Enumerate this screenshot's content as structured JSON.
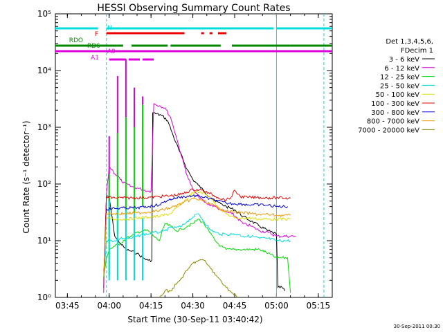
{
  "chart_data": {
    "type": "line",
    "title": "HESSI Observing Summary Count Rates",
    "xlabel": "Start Time (30-Sep-11 03:40:42)",
    "ylabel": "Count Rate (s⁻¹ detector⁻¹)",
    "yscale": "log",
    "ylim": [
      1,
      100000
    ],
    "xlim": [
      "03:40:42",
      "05:20:00"
    ],
    "x_unit": "time (HH:MM)",
    "x_ticks": [
      "03:45",
      "04:00",
      "04:15",
      "04:30",
      "04:45",
      "05:00",
      "05:15"
    ],
    "y_ticks": [
      "10⁰",
      "10¹",
      "10²",
      "10³",
      "10⁴",
      "10⁵"
    ],
    "grid": false,
    "legend_placement": "right",
    "legend_header": [
      "Det 1,3,4,5,6,",
      "FDecim 1"
    ],
    "footer_stamp": "30-Sep-2011 00:30",
    "data_window": [
      "03:58",
      "05:07"
    ],
    "series": [
      {
        "name": "3 - 6 keV",
        "color": "#000000",
        "points": [
          [
            "03:58",
            1.5
          ],
          [
            "03:59",
            60
          ],
          [
            "04:00",
            58
          ],
          [
            "04:02",
            12
          ],
          [
            "04:04",
            9
          ],
          [
            "04:06",
            7
          ],
          [
            "04:08",
            6.5
          ],
          [
            "04:10",
            6
          ],
          [
            "04:12",
            5
          ],
          [
            "04:14",
            4.5
          ],
          [
            "04:15.3",
            4.5
          ],
          [
            "04:15.6",
            1800
          ],
          [
            "04:19",
            1600
          ],
          [
            "04:21",
            1300
          ],
          [
            "04:23",
            700
          ],
          [
            "04:25",
            400
          ],
          [
            "04:28",
            180
          ],
          [
            "04:30",
            120
          ],
          [
            "04:32",
            95
          ],
          [
            "04:34",
            75
          ],
          [
            "04:36",
            60
          ],
          [
            "04:38",
            50
          ],
          [
            "04:40",
            45
          ],
          [
            "04:42",
            40
          ],
          [
            "04:45",
            35
          ],
          [
            "04:48",
            27
          ],
          [
            "04:51",
            22
          ],
          [
            "04:54",
            18
          ],
          [
            "04:57",
            15
          ],
          [
            "05:00",
            13
          ],
          [
            "05:00.5",
            1.5
          ],
          [
            "05:02",
            1.5
          ],
          [
            "05:03",
            1.3
          ]
        ]
      },
      {
        "name": "6 - 12 keV",
        "color": "#dd00dd",
        "points": [
          [
            "03:58",
            1.2
          ],
          [
            "03:59",
            65
          ],
          [
            "04:00",
            200
          ],
          [
            "04:01",
            180
          ],
          [
            "04:02",
            150
          ],
          [
            "04:03",
            140
          ],
          [
            "04:04",
            120
          ],
          [
            "04:05",
            105
          ],
          [
            "04:06",
            100
          ],
          [
            "04:08",
            90
          ],
          [
            "04:10",
            85
          ],
          [
            "04:12",
            80
          ],
          [
            "04:14",
            75
          ],
          [
            "04:15",
            75
          ],
          [
            "04:16",
            2600
          ],
          [
            "04:18",
            2400
          ],
          [
            "04:20",
            2200
          ],
          [
            "04:22",
            1500
          ],
          [
            "04:24",
            700
          ],
          [
            "04:26",
            300
          ],
          [
            "04:28",
            140
          ],
          [
            "04:30",
            80
          ],
          [
            "04:32",
            60
          ],
          [
            "04:35",
            45
          ],
          [
            "04:38",
            40
          ],
          [
            "04:40",
            35
          ],
          [
            "04:42",
            32
          ],
          [
            "04:44",
            30
          ],
          [
            "04:46",
            25
          ],
          [
            "04:48",
            20
          ],
          [
            "04:51",
            18
          ],
          [
            "04:54",
            15
          ],
          [
            "04:57",
            14
          ],
          [
            "05:00",
            12
          ],
          [
            "05:05",
            12
          ],
          [
            "05:07",
            12
          ]
        ],
        "spikes": [
          [
            "04:00",
            700
          ],
          [
            "04:03",
            8000
          ],
          [
            "04:06",
            16000
          ],
          [
            "04:09",
            5000
          ],
          [
            "04:12",
            3500
          ]
        ]
      },
      {
        "name": "12 - 25 keV",
        "color": "#00dd00",
        "points": [
          [
            "03:58",
            2
          ],
          [
            "03:59",
            5
          ],
          [
            "04:00",
            7
          ],
          [
            "04:02",
            8
          ],
          [
            "04:04",
            9
          ],
          [
            "04:06",
            11
          ],
          [
            "04:08",
            12
          ],
          [
            "04:10",
            14
          ],
          [
            "04:12",
            15
          ],
          [
            "04:14",
            15
          ],
          [
            "04:16",
            12
          ],
          [
            "04:18",
            10
          ],
          [
            "04:20",
            20
          ],
          [
            "04:22",
            18
          ],
          [
            "04:24",
            15
          ],
          [
            "04:26",
            16
          ],
          [
            "04:28",
            18
          ],
          [
            "04:30",
            20
          ],
          [
            "04:32",
            24
          ],
          [
            "04:34",
            20
          ],
          [
            "04:36",
            14
          ],
          [
            "04:38",
            10
          ],
          [
            "04:40",
            8
          ],
          [
            "04:42",
            7
          ],
          [
            "04:44",
            7
          ],
          [
            "04:46",
            7
          ],
          [
            "04:48",
            7
          ],
          [
            "04:51",
            7
          ],
          [
            "04:54",
            7
          ],
          [
            "04:57",
            6
          ],
          [
            "05:00",
            5
          ],
          [
            "05:02",
            5
          ],
          [
            "05:04",
            5
          ],
          [
            "05:05",
            1.2
          ]
        ],
        "spikes": [
          [
            "04:00",
            150
          ],
          [
            "04:03",
            800
          ],
          [
            "04:06",
            1500
          ],
          [
            "04:09",
            1000
          ],
          [
            "04:12",
            2500
          ]
        ]
      },
      {
        "name": "25 - 50 keV",
        "color": "#00dddd",
        "points": [
          [
            "03:58",
            2
          ],
          [
            "03:59",
            10
          ],
          [
            "04:00",
            10
          ],
          [
            "04:02",
            10
          ],
          [
            "04:04",
            11
          ],
          [
            "04:06",
            11
          ],
          [
            "04:08",
            11
          ],
          [
            "04:10",
            12
          ],
          [
            "04:12",
            13
          ],
          [
            "04:14",
            13
          ],
          [
            "04:16",
            14
          ],
          [
            "04:18",
            14
          ],
          [
            "04:20",
            15
          ],
          [
            "04:22",
            17
          ],
          [
            "04:24",
            17
          ],
          [
            "04:26",
            18
          ],
          [
            "04:28",
            22
          ],
          [
            "04:30",
            26
          ],
          [
            "04:32",
            30
          ],
          [
            "04:34",
            22
          ],
          [
            "04:36",
            16
          ],
          [
            "04:38",
            14
          ],
          [
            "04:40",
            13
          ],
          [
            "04:42",
            13
          ],
          [
            "04:44",
            13
          ],
          [
            "04:46",
            13
          ],
          [
            "04:48",
            12
          ],
          [
            "04:51",
            12
          ],
          [
            "04:54",
            11
          ],
          [
            "04:57",
            11
          ],
          [
            "05:00",
            10
          ],
          [
            "05:03",
            10
          ],
          [
            "05:05",
            10
          ]
        ],
        "spikes": [
          [
            "04:00",
            50
          ],
          [
            "04:03",
            40
          ],
          [
            "04:06",
            35
          ],
          [
            "04:09",
            30
          ],
          [
            "04:12",
            25
          ]
        ]
      },
      {
        "name": "50 - 100 keV",
        "color": "#dddd00",
        "points": [
          [
            "03:58",
            2
          ],
          [
            "03:59",
            25
          ],
          [
            "04:02",
            24
          ],
          [
            "04:06",
            24
          ],
          [
            "04:10",
            25
          ],
          [
            "04:14",
            26
          ],
          [
            "04:18",
            27
          ],
          [
            "04:22",
            30
          ],
          [
            "04:26",
            45
          ],
          [
            "04:30",
            70
          ],
          [
            "04:33",
            72
          ],
          [
            "04:36",
            60
          ],
          [
            "04:39",
            40
          ],
          [
            "04:42",
            30
          ],
          [
            "04:45",
            25
          ],
          [
            "04:48",
            25
          ],
          [
            "04:51",
            25
          ],
          [
            "04:54",
            24
          ],
          [
            "04:57",
            24
          ],
          [
            "05:00",
            24
          ],
          [
            "05:05",
            24
          ]
        ]
      },
      {
        "name": "100 - 300 keV",
        "color": "#ee0000",
        "points": [
          [
            "03:58",
            2
          ],
          [
            "03:59",
            58
          ],
          [
            "04:02",
            57
          ],
          [
            "04:06",
            57
          ],
          [
            "04:10",
            57
          ],
          [
            "04:14",
            58
          ],
          [
            "04:18",
            60
          ],
          [
            "04:22",
            62
          ],
          [
            "04:26",
            66
          ],
          [
            "04:30",
            80
          ],
          [
            "04:33",
            78
          ],
          [
            "04:36",
            68
          ],
          [
            "04:39",
            58
          ],
          [
            "04:42",
            52
          ],
          [
            "04:44",
            60
          ],
          [
            "04:45",
            78
          ],
          [
            "04:47",
            60
          ],
          [
            "04:50",
            58
          ],
          [
            "04:53",
            58
          ],
          [
            "04:56",
            57
          ],
          [
            "05:00",
            57
          ],
          [
            "05:05",
            56
          ]
        ]
      },
      {
        "name": "300 - 800 keV",
        "color": "#0000dd",
        "points": [
          [
            "03:58",
            2
          ],
          [
            "03:59",
            36
          ],
          [
            "04:02",
            37
          ],
          [
            "04:06",
            38
          ],
          [
            "04:10",
            38
          ],
          [
            "04:14",
            40
          ],
          [
            "04:18",
            43
          ],
          [
            "04:21",
            52
          ],
          [
            "04:24",
            57
          ],
          [
            "04:27",
            60
          ],
          [
            "04:30",
            62
          ],
          [
            "04:33",
            60
          ],
          [
            "04:36",
            55
          ],
          [
            "04:39",
            50
          ],
          [
            "04:42",
            46
          ],
          [
            "04:45",
            45
          ],
          [
            "04:48",
            44
          ],
          [
            "04:51",
            43
          ],
          [
            "04:54",
            43
          ],
          [
            "04:57",
            42
          ],
          [
            "05:00",
            40
          ],
          [
            "05:04",
            40
          ]
        ]
      },
      {
        "name": "800 - 7000 keV",
        "color": "#ee9900",
        "points": [
          [
            "03:58",
            2
          ],
          [
            "03:59",
            30
          ],
          [
            "04:02",
            30
          ],
          [
            "04:06",
            30
          ],
          [
            "04:10",
            31
          ],
          [
            "04:14",
            32
          ],
          [
            "04:18",
            34
          ],
          [
            "04:22",
            38
          ],
          [
            "04:26",
            45
          ],
          [
            "04:30",
            55
          ],
          [
            "04:33",
            52
          ],
          [
            "04:36",
            45
          ],
          [
            "04:39",
            38
          ],
          [
            "04:42",
            33
          ],
          [
            "04:45",
            32
          ],
          [
            "04:48",
            31
          ],
          [
            "04:51",
            30
          ],
          [
            "04:54",
            29
          ],
          [
            "04:57",
            29
          ],
          [
            "05:00",
            28
          ],
          [
            "05:05",
            28
          ]
        ]
      },
      {
        "name": "7000 - 20000 keV",
        "color": "#888800",
        "points": [
          [
            "04:18",
            1
          ],
          [
            "04:20",
            1.3
          ],
          [
            "04:22",
            1.3
          ],
          [
            "04:24",
            1.7
          ],
          [
            "04:26",
            2.2
          ],
          [
            "04:28",
            3
          ],
          [
            "04:30",
            4
          ],
          [
            "04:32",
            4.5
          ],
          [
            "04:34",
            4.5
          ],
          [
            "04:36",
            3.5
          ],
          [
            "04:38",
            2.5
          ],
          [
            "04:40",
            2
          ],
          [
            "04:42",
            1.5
          ],
          [
            "04:44",
            1.2
          ],
          [
            "04:46",
            1
          ]
        ]
      }
    ],
    "state_flags": [
      {
        "label": "N",
        "color": "#00dddd",
        "row": 1,
        "segments": [
          [
            "03:40:42",
            "03:56"
          ],
          [
            "03:59",
            "04:59"
          ],
          [
            "05:00",
            "05:20"
          ]
        ],
        "dotted_from": "03:59"
      },
      {
        "label": "F",
        "color": "#ee0000",
        "row": 2,
        "segments": [
          [
            "03:59",
            "04:27"
          ],
          [
            "04:33",
            "04:34"
          ],
          [
            "04:36",
            "04:37"
          ],
          [
            "04:39",
            "04:42"
          ]
        ]
      },
      {
        "label": "RDO",
        "color": "#008800",
        "row": 3,
        "segments": [
          [
            "03:40:42",
            "04:03"
          ],
          [
            "04:03",
            "04:05"
          ],
          [
            "04:08",
            "04:21"
          ],
          [
            "04:22",
            "04:40"
          ],
          [
            "04:44",
            "05:00"
          ],
          [
            "05:00",
            "05:05"
          ],
          [
            "05:05",
            "05:20"
          ]
        ]
      },
      {
        "label": "RD6",
        "color": "#008800",
        "row": 3
      },
      {
        "label": "A9",
        "color": "#dd00dd",
        "row": 4,
        "segments": [
          [
            "03:40:42",
            "05:20"
          ]
        ]
      },
      {
        "label": "A1",
        "color": "#dd00dd",
        "row": 5,
        "segments": [
          [
            "04:00",
            "04:06"
          ],
          [
            "04:07",
            "04:11"
          ],
          [
            "04:12",
            "04:16"
          ]
        ]
      }
    ],
    "vertical_markers": [
      {
        "time": "03:59",
        "color": "#00dddd",
        "style": "dashed"
      },
      {
        "time": "05:00",
        "color": "#00dddd",
        "style": "solid"
      },
      {
        "time": "05:17",
        "color": "#00dddd",
        "style": "dashed"
      }
    ]
  }
}
